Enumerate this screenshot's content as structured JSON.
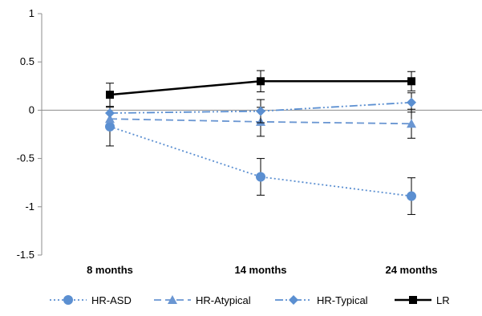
{
  "chart_data": {
    "type": "line",
    "title": "",
    "xlabel": "",
    "ylabel": "",
    "categories": [
      "8 months",
      "14 months",
      "24 months"
    ],
    "ylim": [
      -1.5,
      1
    ],
    "yticks": [
      "1",
      "0.5",
      "0",
      "-0.5",
      "-1",
      "-1.5"
    ],
    "ytick_values": [
      1,
      0.5,
      0,
      -0.5,
      -1,
      -1.5
    ],
    "grid": false,
    "legend_position": "bottom",
    "series": [
      {
        "name": "HR-ASD",
        "values": [
          -0.17,
          -0.69,
          -0.89
        ],
        "error": [
          0.2,
          0.19,
          0.19
        ],
        "color": "#5b8fd1",
        "dash": "dotted",
        "marker": "circle"
      },
      {
        "name": "HR-Atypical",
        "values": [
          -0.09,
          -0.12,
          -0.14
        ],
        "error": [
          0.0,
          0.15,
          0.15
        ],
        "color": "#6a96d2",
        "dash": "long-dash",
        "marker": "triangle"
      },
      {
        "name": "HR-Typical",
        "values": [
          -0.03,
          -0.01,
          0.08
        ],
        "error": [
          0.0,
          0.12,
          0.1
        ],
        "color": "#5b8fd1",
        "dash": "dash-dot-dot",
        "marker": "diamond"
      },
      {
        "name": "LR",
        "values": [
          0.16,
          0.3,
          0.3
        ],
        "error": [
          0.12,
          0.11,
          0.1
        ],
        "color": "#000000",
        "dash": "solid",
        "marker": "square"
      }
    ]
  }
}
